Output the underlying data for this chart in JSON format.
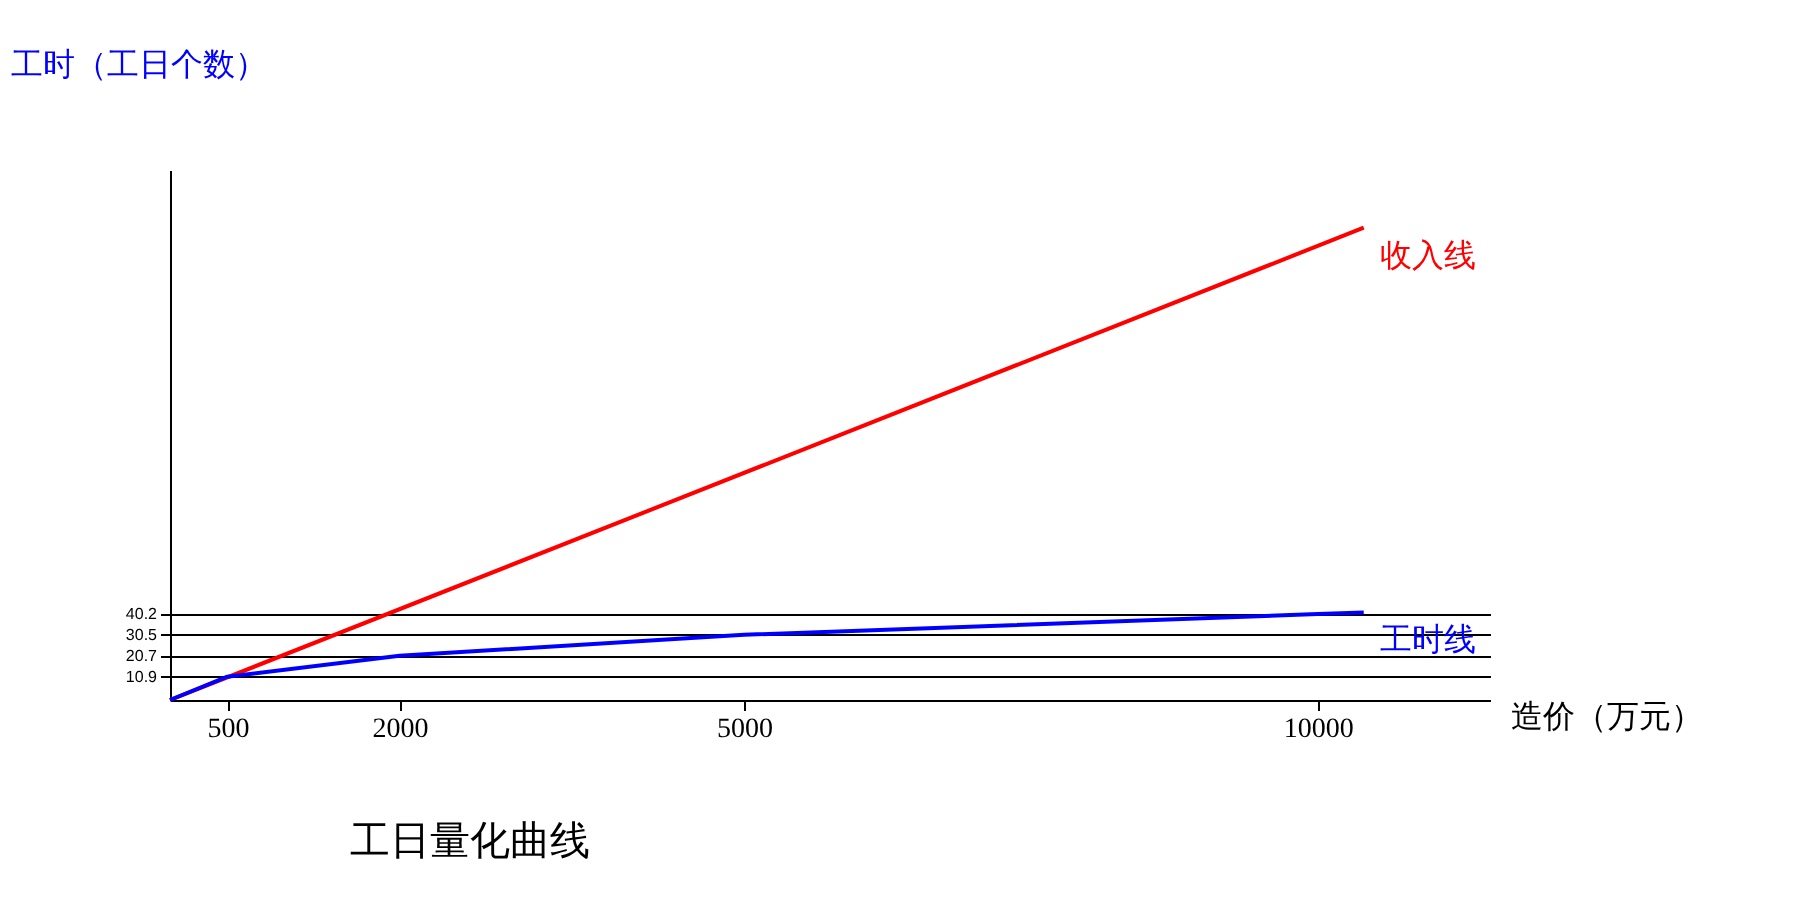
{
  "chart_data": {
    "type": "line",
    "title": "工日量化曲线",
    "xlabel": "造价（万元）",
    "ylabel": "工时（工日个数）",
    "xlim": [
      0,
      11500
    ],
    "ylim": [
      0,
      248
    ],
    "xticks": [
      500,
      2000,
      5000,
      10000
    ],
    "yticks": [
      10.9,
      20.7,
      30.5,
      40.2
    ],
    "grid": "y",
    "marker": "none",
    "line_style": "solid",
    "series": [
      {
        "name": "收入线",
        "color": "#ff0000",
        "x": [
          0,
          10400
        ],
        "values": [
          0,
          221
        ]
      },
      {
        "name": "工时线",
        "color": "#0000ff",
        "x": [
          0,
          500,
          2000,
          5000,
          10000,
          10400
        ],
        "values": [
          0,
          10.9,
          20.7,
          30.5,
          40.2,
          41
        ]
      }
    ]
  }
}
